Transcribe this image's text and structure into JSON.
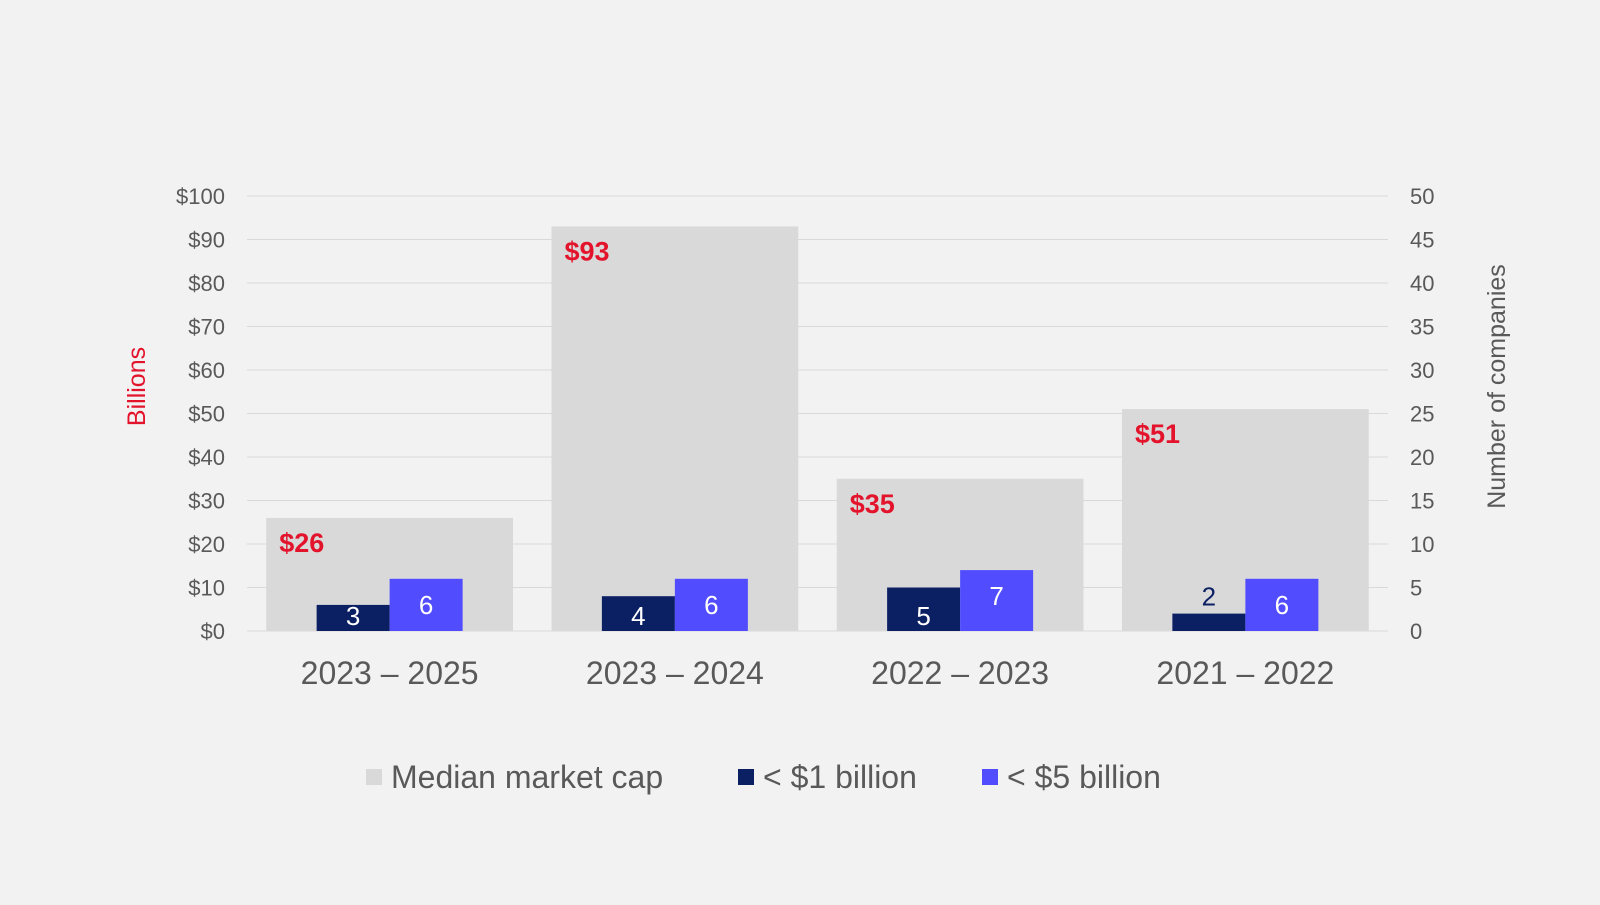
{
  "chart_data": {
    "type": "bar",
    "categories": [
      "2023 – 2025",
      "2023 – 2024",
      "2022 – 2023",
      "2021 – 2022"
    ],
    "series": [
      {
        "name": "Median market cap",
        "axis": "left",
        "values": [
          26,
          93,
          35,
          51
        ],
        "labels": [
          "$26",
          "$93",
          "$35",
          "$51"
        ],
        "color": "#d9d9d9"
      },
      {
        "name": "< $1 billion",
        "axis": "right",
        "values": [
          3,
          4,
          5,
          2
        ],
        "labels": [
          "3",
          "4",
          "5",
          "2"
        ],
        "color": "#0b1f63"
      },
      {
        "name": "< $5 billion",
        "axis": "right",
        "values": [
          6,
          6,
          7,
          6
        ],
        "labels": [
          "6",
          "6",
          "7",
          "6"
        ],
        "color": "#524cff"
      }
    ],
    "y_left": {
      "label": "Billions",
      "ylim": [
        0,
        100
      ],
      "ticks": [
        "$0",
        "$10",
        "$20",
        "$30",
        "$40",
        "$50",
        "$60",
        "$70",
        "$80",
        "$90",
        "$100"
      ]
    },
    "y_right": {
      "label": "Number of companies",
      "ylim": [
        0,
        50
      ],
      "ticks": [
        "0",
        "5",
        "10",
        "15",
        "20",
        "25",
        "30",
        "35",
        "40",
        "45",
        "50"
      ]
    },
    "grid": true,
    "legend_position": "bottom",
    "colors": {
      "median_label": "#e3132c",
      "left_axis_title": "#e3132c",
      "tick": "#595959",
      "gridline": "#d9d9d9"
    }
  }
}
